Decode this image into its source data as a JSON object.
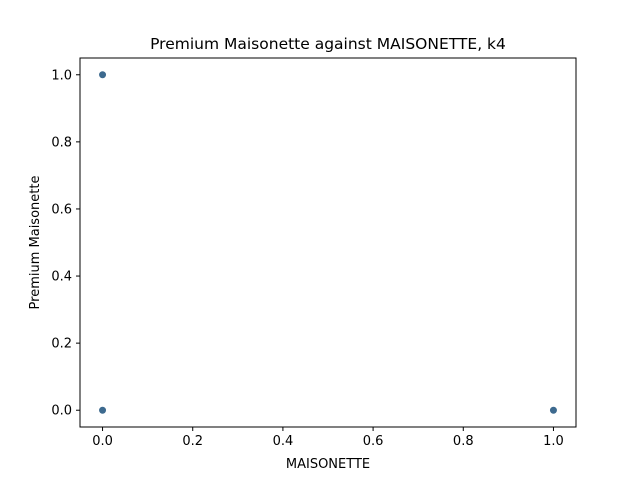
{
  "chart_data": {
    "type": "scatter",
    "title": "Premium Maisonette against MAISONETTE, k4",
    "xlabel": "MAISONETTE",
    "ylabel": "Premium Maisonette",
    "xlim": [
      -0.05,
      1.05
    ],
    "ylim": [
      -0.05,
      1.05
    ],
    "xticks": [
      0.0,
      0.2,
      0.4,
      0.6,
      0.8,
      1.0
    ],
    "yticks": [
      0.0,
      0.2,
      0.4,
      0.6,
      0.8,
      1.0
    ],
    "xtick_labels": [
      "0.0",
      "0.2",
      "0.4",
      "0.6",
      "0.8",
      "1.0"
    ],
    "ytick_labels": [
      "0.0",
      "0.2",
      "0.4",
      "0.6",
      "0.8",
      "1.0"
    ],
    "grid": false,
    "marker_color": "#3d6a8f",
    "series": [
      {
        "points": [
          {
            "x": 0.0,
            "y": 1.0
          },
          {
            "x": 0.0,
            "y": 0.0
          },
          {
            "x": 1.0,
            "y": 0.0
          }
        ]
      }
    ]
  }
}
